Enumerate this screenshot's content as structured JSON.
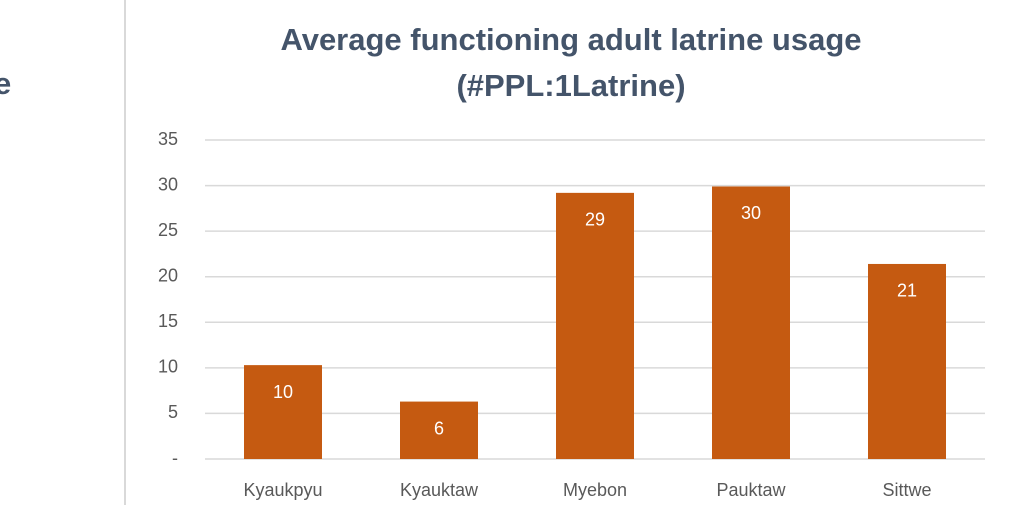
{
  "side_text": "e",
  "chart_data": {
    "type": "bar",
    "title": [
      "Average functioning adult latrine usage",
      "(#PPL:1Latrine)"
    ],
    "categories": [
      "Kyaukpyu",
      "Kyauktaw",
      "Myebon",
      "Pauktaw",
      "Sittwe"
    ],
    "values": [
      10.3,
      6.3,
      29.2,
      29.9,
      21.4
    ],
    "value_labels": [
      "10",
      "6",
      "29",
      "30",
      "21"
    ],
    "color": "#c55a11",
    "ylim": [
      0,
      35
    ],
    "yticks": [
      {
        "value": 0,
        "label": "-"
      },
      5,
      10,
      15,
      20,
      25,
      30,
      35
    ],
    "grid": true
  }
}
